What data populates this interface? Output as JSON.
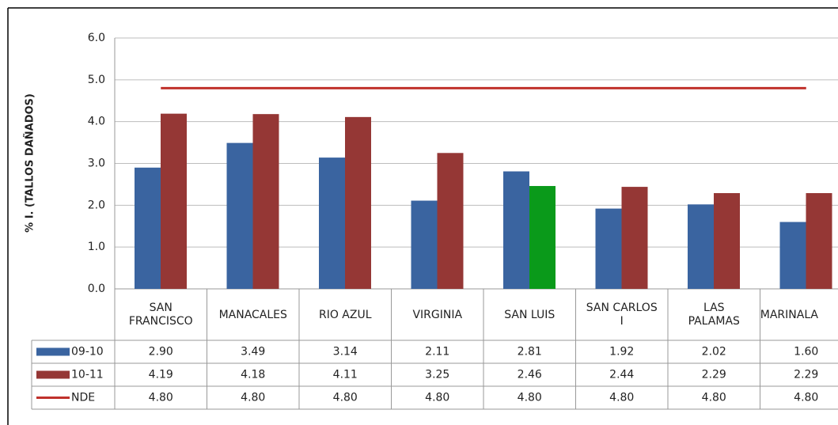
{
  "chart_data": {
    "type": "bar",
    "y_label": "% I. (TALLOS DAÑADOS)",
    "categories": [
      "SAN FRANCISCO",
      "MANACALES",
      "RIO AZUL",
      "VIRGINIA",
      "SAN LUIS",
      "SAN CARLOS I",
      "LAS PALAMAS",
      "MARINALA"
    ],
    "series": [
      {
        "name": "09-10",
        "type": "bar",
        "color": "#3a64a0",
        "values": [
          2.9,
          3.49,
          3.14,
          2.11,
          2.81,
          1.92,
          2.02,
          1.6
        ],
        "value_labels": [
          "2.90",
          "3.49",
          "3.14",
          "2.11",
          "2.81",
          "1.92",
          "2.02",
          "1.60"
        ]
      },
      {
        "name": "10-11",
        "type": "bar",
        "color": "#953735",
        "colors": [
          "#953735",
          "#953735",
          "#953735",
          "#953735",
          "#0a9a1a",
          "#953735",
          "#953735",
          "#953735"
        ],
        "values": [
          4.19,
          4.18,
          4.11,
          3.25,
          2.46,
          2.44,
          2.29,
          2.29
        ],
        "value_labels": [
          "4.19",
          "4.18",
          "4.11",
          "3.25",
          "2.46",
          "2.44",
          "2.29",
          "2.29"
        ]
      },
      {
        "name": "NDE",
        "type": "line",
        "color": "#c0312b",
        "values": [
          4.8,
          4.8,
          4.8,
          4.8,
          4.8,
          4.8,
          4.8,
          4.8
        ],
        "value_labels": [
          "4.80",
          "4.80",
          "4.80",
          "4.80",
          "4.80",
          "4.80",
          "4.80",
          "4.80"
        ]
      }
    ],
    "ylim": [
      0,
      6
    ],
    "yticks": [
      {
        "value": 0,
        "label": "0.0"
      },
      {
        "value": 1,
        "label": "1.0"
      },
      {
        "value": 2,
        "label": "2.0"
      },
      {
        "value": 3,
        "label": "3.0"
      },
      {
        "value": 4,
        "label": "4.0"
      },
      {
        "value": 5,
        "label": "5.0"
      },
      {
        "value": 6,
        "label": "6.0"
      }
    ],
    "grid": true
  }
}
